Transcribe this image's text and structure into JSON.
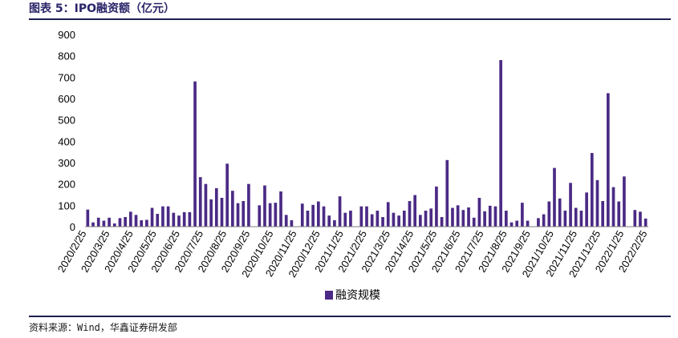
{
  "figure_title": "图表 5：IPO融资额（亿元）",
  "source_note": "资料来源：Wind，华鑫证券研发部",
  "chart_data": {
    "type": "bar",
    "title": "",
    "xlabel": "",
    "ylabel": "",
    "ylim": [
      0,
      900
    ],
    "yticks": [
      0,
      100,
      200,
      300,
      400,
      500,
      600,
      700,
      800,
      900
    ],
    "x_tick_labels": [
      "2020/2/25",
      "2020/3/25",
      "2020/4/25",
      "2020/5/25",
      "2020/6/25",
      "2020/7/25",
      "2020/8/25",
      "2020/9/25",
      "2020/10/25",
      "2020/11/25",
      "2020/12/25",
      "2021/1/25",
      "2021/2/25",
      "2021/3/25",
      "2021/4/25",
      "2021/5/25",
      "2021/6/25",
      "2021/7/25",
      "2021/8/25",
      "2021/9/25",
      "2021/10/25",
      "2021/11/25",
      "2021/12/25",
      "2022/1/25",
      "2022/2/25"
    ],
    "grid": false,
    "legend": "bottom-center",
    "bar_color": "#4b2a85",
    "series": [
      {
        "name": "融资规模",
        "values": [
          80,
          20,
          42,
          28,
          42,
          15,
          40,
          45,
          70,
          55,
          30,
          32,
          88,
          60,
          95,
          95,
          65,
          52,
          68,
          68,
          680,
          232,
          200,
          128,
          180,
          135,
          295,
          168,
          110,
          120,
          200,
          0,
          100,
          193,
          110,
          112,
          165,
          55,
          30,
          0,
          108,
          75,
          102,
          118,
          95,
          52,
          30,
          142,
          65,
          75,
          0,
          95,
          95,
          58,
          75,
          45,
          115,
          65,
          52,
          75,
          120,
          148,
          55,
          75,
          85,
          188,
          45,
          312,
          88,
          100,
          78,
          90,
          42,
          135,
          72,
          98,
          95,
          780,
          75,
          20,
          28,
          112,
          28,
          0,
          40,
          58,
          118,
          275,
          132,
          75,
          205,
          88,
          75,
          160,
          345,
          218,
          120,
          625,
          185,
          118,
          235,
          0,
          78,
          70,
          38
        ]
      }
    ]
  }
}
